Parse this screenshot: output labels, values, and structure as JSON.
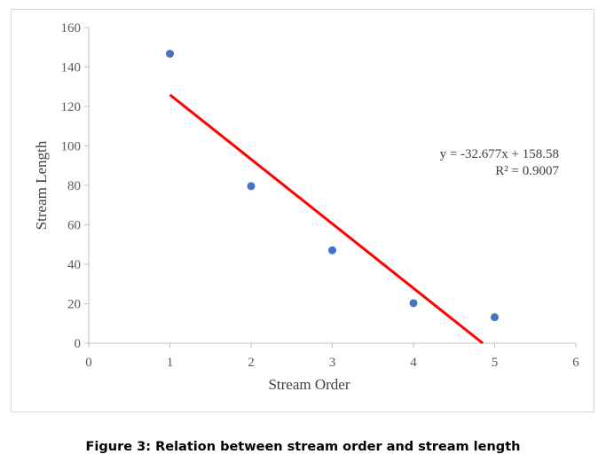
{
  "chart_data": {
    "type": "scatter",
    "title": "",
    "xlabel": "Stream Order",
    "ylabel": "Stream Length",
    "xlim": [
      0,
      6
    ],
    "ylim": [
      0,
      160
    ],
    "xticks": [
      0,
      1,
      2,
      3,
      4,
      5,
      6
    ],
    "yticks": [
      0,
      20,
      40,
      60,
      80,
      100,
      120,
      140,
      160
    ],
    "grid": false,
    "series": [
      {
        "name": "Stream Length",
        "x": [
          1,
          2,
          3,
          4,
          5
        ],
        "y": [
          146.7,
          79.6,
          47.1,
          20.3,
          13.2
        ],
        "color": "#4472c4"
      }
    ],
    "trendline": {
      "type": "linear",
      "slope": -32.677,
      "intercept": 158.58,
      "x_range": [
        1,
        4.853
      ],
      "color": "#ff0000"
    },
    "annotations": [
      "y = -32.677x + 158.58",
      "R² = 0.9007"
    ]
  },
  "caption": "Figure 3: Relation between stream order and stream length"
}
